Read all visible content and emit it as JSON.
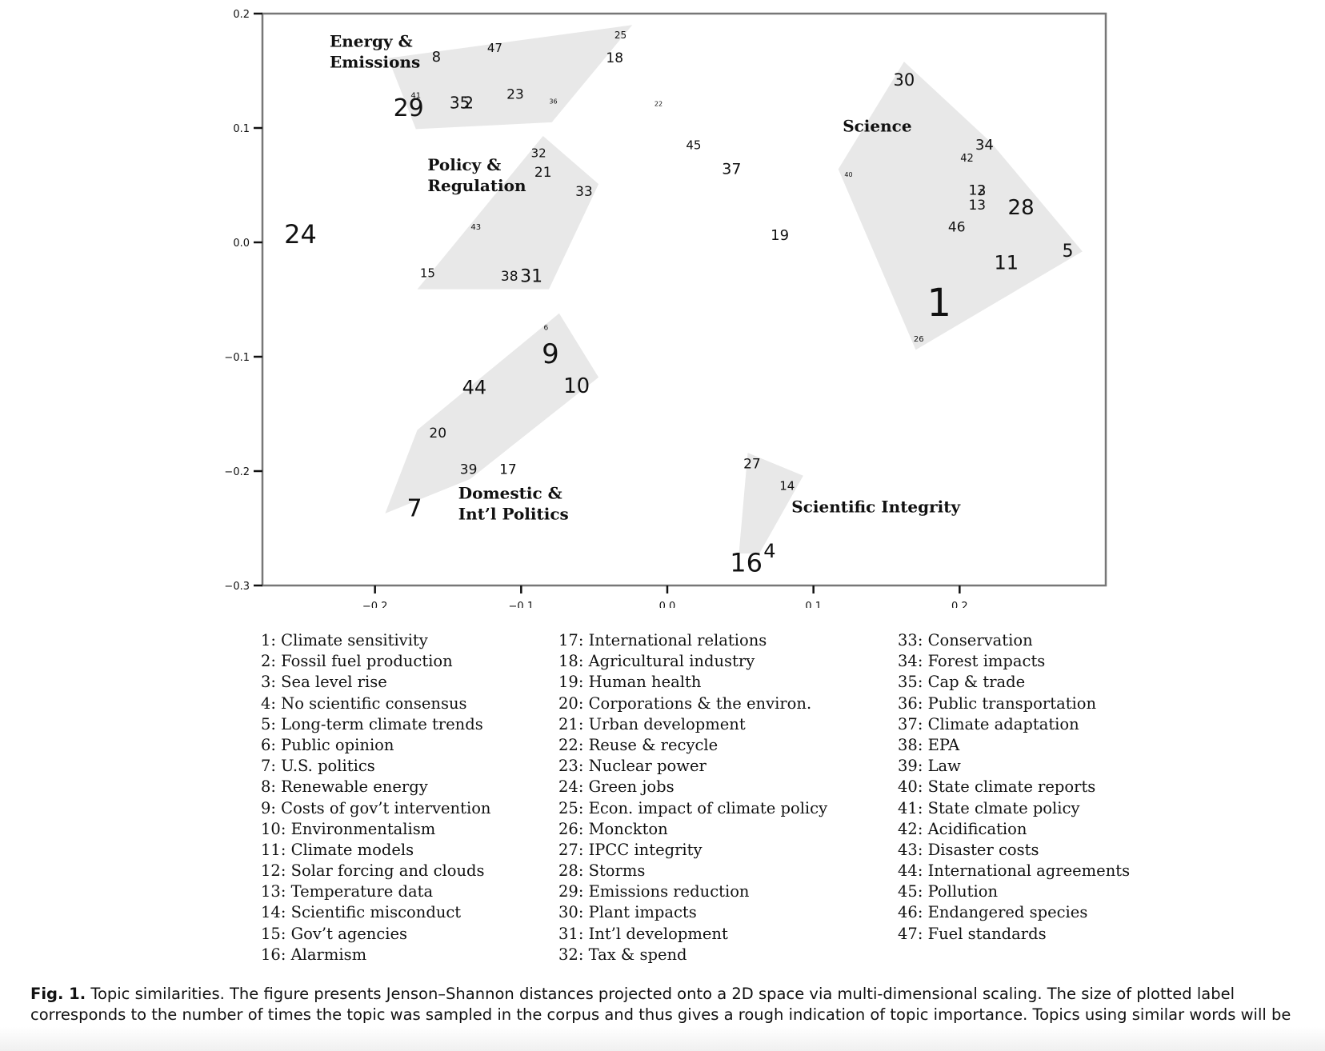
{
  "chart_data": {
    "type": "scatter",
    "title": "",
    "xlabel": "",
    "ylabel": "",
    "xlim": [
      -0.277,
      0.3
    ],
    "ylim": [
      -0.3,
      0.2
    ],
    "xticks": [
      -0.2,
      -0.1,
      0.0,
      0.1,
      0.2
    ],
    "xtick_labels": [
      "−0.2",
      "−0.1",
      "0.0",
      "0.1",
      "0.2"
    ],
    "yticks": [
      0.2,
      0.1,
      0.0,
      -0.1,
      -0.2,
      -0.3
    ],
    "ytick_labels": [
      "0.2",
      "0.1",
      "0.0",
      "−0.1",
      "−0.2",
      "−0.3"
    ],
    "grid": false,
    "hull_color": "#e8e8e8",
    "points": [
      {
        "label": "1",
        "x": 0.186,
        "y": -0.053,
        "size": 48
      },
      {
        "label": "2",
        "x": -0.136,
        "y": 0.122,
        "size": 20
      },
      {
        "label": "3",
        "x": 0.215,
        "y": 0.045,
        "size": 18
      },
      {
        "label": "4",
        "x": 0.07,
        "y": -0.27,
        "size": 24
      },
      {
        "label": "5",
        "x": 0.274,
        "y": -0.008,
        "size": 22
      },
      {
        "label": "6",
        "x": -0.083,
        "y": -0.075,
        "size": 9
      },
      {
        "label": "7",
        "x": -0.173,
        "y": -0.233,
        "size": 30
      },
      {
        "label": "8",
        "x": -0.158,
        "y": 0.162,
        "size": 18
      },
      {
        "label": "9",
        "x": -0.08,
        "y": -0.098,
        "size": 34
      },
      {
        "label": "10",
        "x": -0.062,
        "y": -0.126,
        "size": 26
      },
      {
        "label": "11",
        "x": 0.232,
        "y": -0.018,
        "size": 24
      },
      {
        "label": "12",
        "x": 0.212,
        "y": 0.045,
        "size": 17
      },
      {
        "label": "13",
        "x": 0.212,
        "y": 0.032,
        "size": 17
      },
      {
        "label": "14",
        "x": 0.082,
        "y": -0.213,
        "size": 15
      },
      {
        "label": "15",
        "x": -0.164,
        "y": -0.027,
        "size": 15
      },
      {
        "label": "16",
        "x": 0.054,
        "y": -0.28,
        "size": 32
      },
      {
        "label": "17",
        "x": -0.109,
        "y": -0.199,
        "size": 17
      },
      {
        "label": "18",
        "x": -0.036,
        "y": 0.161,
        "size": 17
      },
      {
        "label": "19",
        "x": 0.077,
        "y": 0.006,
        "size": 18
      },
      {
        "label": "20",
        "x": -0.157,
        "y": -0.167,
        "size": 17
      },
      {
        "label": "21",
        "x": -0.085,
        "y": 0.061,
        "size": 17
      },
      {
        "label": "22",
        "x": -0.006,
        "y": 0.121,
        "size": 8
      },
      {
        "label": "23",
        "x": -0.104,
        "y": 0.129,
        "size": 17
      },
      {
        "label": "24",
        "x": -0.251,
        "y": 0.007,
        "size": 32
      },
      {
        "label": "25",
        "x": -0.032,
        "y": 0.181,
        "size": 12
      },
      {
        "label": "26",
        "x": 0.172,
        "y": -0.085,
        "size": 10
      },
      {
        "label": "27",
        "x": 0.058,
        "y": -0.194,
        "size": 17
      },
      {
        "label": "28",
        "x": 0.242,
        "y": 0.03,
        "size": 26
      },
      {
        "label": "29",
        "x": -0.177,
        "y": 0.117,
        "size": 30
      },
      {
        "label": "30",
        "x": 0.162,
        "y": 0.142,
        "size": 21
      },
      {
        "label": "31",
        "x": -0.093,
        "y": -0.03,
        "size": 22
      },
      {
        "label": "32",
        "x": -0.088,
        "y": 0.078,
        "size": 15
      },
      {
        "label": "33",
        "x": -0.057,
        "y": 0.044,
        "size": 17
      },
      {
        "label": "34",
        "x": 0.217,
        "y": 0.085,
        "size": 18
      },
      {
        "label": "35",
        "x": -0.142,
        "y": 0.122,
        "size": 20
      },
      {
        "label": "36",
        "x": -0.078,
        "y": 0.123,
        "size": 8
      },
      {
        "label": "37",
        "x": 0.044,
        "y": 0.064,
        "size": 19
      },
      {
        "label": "38",
        "x": -0.108,
        "y": -0.03,
        "size": 17
      },
      {
        "label": "39",
        "x": -0.136,
        "y": -0.199,
        "size": 17
      },
      {
        "label": "40",
        "x": 0.124,
        "y": 0.059,
        "size": 8
      },
      {
        "label": "41",
        "x": -0.172,
        "y": 0.128,
        "size": 10
      },
      {
        "label": "42",
        "x": 0.205,
        "y": 0.073,
        "size": 13
      },
      {
        "label": "43",
        "x": -0.131,
        "y": 0.013,
        "size": 10
      },
      {
        "label": "44",
        "x": -0.132,
        "y": -0.127,
        "size": 24
      },
      {
        "label": "45",
        "x": 0.018,
        "y": 0.085,
        "size": 15
      },
      {
        "label": "46",
        "x": 0.198,
        "y": 0.013,
        "size": 17
      },
      {
        "label": "47",
        "x": -0.118,
        "y": 0.17,
        "size": 15
      }
    ],
    "hulls": [
      {
        "name": "energy",
        "points": [
          [
            -0.191,
            0.161
          ],
          [
            -0.172,
            0.099
          ],
          [
            -0.079,
            0.105
          ],
          [
            -0.024,
            0.19
          ]
        ]
      },
      {
        "name": "policy",
        "points": [
          [
            -0.171,
            -0.041
          ],
          [
            -0.081,
            -0.041
          ],
          [
            -0.047,
            0.051
          ],
          [
            -0.085,
            0.093
          ]
        ]
      },
      {
        "name": "domestic",
        "points": [
          [
            -0.193,
            -0.237
          ],
          [
            -0.171,
            -0.164
          ],
          [
            -0.074,
            -0.062
          ],
          [
            -0.047,
            -0.118
          ],
          [
            -0.135,
            -0.207
          ]
        ]
      },
      {
        "name": "science",
        "points": [
          [
            0.117,
            0.064
          ],
          [
            0.17,
            -0.094
          ],
          [
            0.284,
            -0.008
          ],
          [
            0.221,
            0.088
          ],
          [
            0.162,
            0.158
          ]
        ]
      },
      {
        "name": "integrity",
        "points": [
          [
            0.055,
            -0.184
          ],
          [
            0.093,
            -0.204
          ],
          [
            0.063,
            -0.272
          ],
          [
            0.049,
            -0.272
          ]
        ]
      }
    ],
    "cluster_labels": [
      {
        "lines": [
          "Energy &",
          "Emissions"
        ],
        "x": -0.231,
        "y": 0.171
      },
      {
        "lines": [
          "Policy &",
          "Regulation"
        ],
        "x": -0.164,
        "y": 0.063
      },
      {
        "lines": [
          "Science"
        ],
        "x": 0.12,
        "y": 0.097
      },
      {
        "lines": [
          "Domestic &",
          "Int’l Politics"
        ],
        "x": -0.143,
        "y": -0.224
      },
      {
        "lines": [
          "Scientific Integrity"
        ],
        "x": 0.085,
        "y": -0.236
      }
    ]
  },
  "legend": {
    "columns": [
      [
        "1: Climate sensitivity",
        "2: Fossil fuel production",
        "3: Sea level rise",
        "4: No scientific consensus",
        "5: Long-term climate trends",
        "6: Public opinion",
        "7: U.S. politics",
        "8: Renewable energy",
        "9: Costs of gov’t intervention",
        "10: Environmentalism",
        "11: Climate models",
        "12: Solar forcing and clouds",
        "13: Temperature data",
        "14: Scientific misconduct",
        "15: Gov’t agencies",
        "16: Alarmism"
      ],
      [
        "17: International relations",
        "18: Agricultural industry",
        "19: Human health",
        "20: Corporations & the environ.",
        "21: Urban development",
        "22: Reuse & recycle",
        "23: Nuclear power",
        "24: Green jobs",
        "25: Econ. impact of climate policy",
        "26: Monckton",
        "27: IPCC integrity",
        "28: Storms",
        "29: Emissions reduction",
        "30: Plant impacts",
        "31: Int’l development",
        "32: Tax & spend"
      ],
      [
        "33: Conservation",
        "34: Forest impacts",
        "35: Cap & trade",
        "36: Public transportation",
        "37: Climate adaptation",
        "38: EPA",
        "39: Law",
        "40: State climate reports",
        "41: State clmate policy",
        "42: Acidification",
        "43: Disaster costs",
        "44: International agreements",
        "45: Pollution",
        "46: Endangered species",
        "47: Fuel standards"
      ]
    ]
  },
  "caption": {
    "label": "Fig. 1.",
    "text": "Topic similarities. The figure presents Jenson–Shannon distances projected onto a 2D space via multi-dimensional scaling. The size of plotted label corresponds to the number of times the topic was sampled in the corpus and thus gives a rough indication of topic importance. Topics using similar words will be closer together in the figure and vice versa. To ease visualization, we plot the convex hull for each cluster in grey."
  }
}
